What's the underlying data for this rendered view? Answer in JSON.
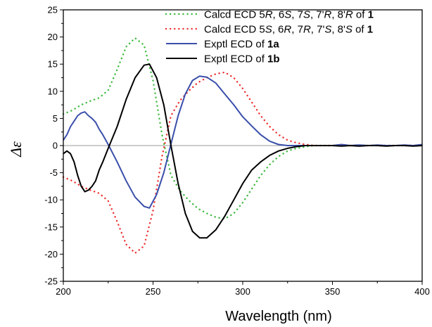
{
  "chart_data": {
    "type": "line",
    "xlabel": "Wavelength (nm)",
    "ylabel": "Δε",
    "xlim": [
      200,
      400
    ],
    "ylim": [
      -25,
      25
    ],
    "xticks": [
      200,
      250,
      300,
      350,
      400
    ],
    "yticks": [
      -25,
      -20,
      -15,
      -10,
      -5,
      0,
      5,
      10,
      15,
      20,
      25
    ],
    "legend_position": "top-right",
    "zero_line": true,
    "series": [
      {
        "name": "Calcd ECD 5R, 6S, 7S, 7'R, 8'R of 1",
        "legend_parts": [
          {
            "t": "Calcd ECD 5"
          },
          {
            "t": "R",
            "i": true
          },
          {
            "t": ", 6"
          },
          {
            "t": "S",
            "i": true
          },
          {
            "t": ", 7"
          },
          {
            "t": "S",
            "i": true
          },
          {
            "t": ", 7'"
          },
          {
            "t": "R",
            "i": true
          },
          {
            "t": ", 8'"
          },
          {
            "t": "R",
            "i": true
          },
          {
            "t": " of "
          },
          {
            "t": "1",
            "b": true
          }
        ],
        "color": "#3cb93c",
        "style": "dotted",
        "x": [
          200,
          205,
          210,
          215,
          220,
          225,
          230,
          235,
          240,
          245,
          250,
          255,
          260,
          265,
          270,
          275,
          280,
          285,
          290,
          295,
          300,
          305,
          310,
          315,
          320,
          325,
          330,
          335,
          340,
          345,
          350,
          360,
          370,
          380,
          390,
          400
        ],
        "y": [
          5.8,
          6.5,
          7.5,
          8.2,
          8.8,
          10.2,
          14,
          18.2,
          19.8,
          18.5,
          12,
          2,
          -5.5,
          -8.3,
          -10.1,
          -11.6,
          -12.5,
          -13.2,
          -13.5,
          -12.5,
          -10.5,
          -8,
          -5.5,
          -3.5,
          -2,
          -1,
          -0.5,
          -0.2,
          0,
          0,
          0,
          0,
          0,
          0,
          0,
          0
        ]
      },
      {
        "name": "Calcd ECD 5S, 6R, 7R, 7'S, 8'S of 1",
        "legend_parts": [
          {
            "t": "Calcd ECD 5"
          },
          {
            "t": "S",
            "i": true
          },
          {
            "t": ", 6"
          },
          {
            "t": "R",
            "i": true
          },
          {
            "t": ", 7"
          },
          {
            "t": "R",
            "i": true
          },
          {
            "t": ", 7'"
          },
          {
            "t": "S",
            "i": true
          },
          {
            "t": ", 8'"
          },
          {
            "t": "S",
            "i": true
          },
          {
            "t": " of "
          },
          {
            "t": "1",
            "b": true
          }
        ],
        "color": "#ee3030",
        "style": "dotted",
        "x": [
          200,
          205,
          210,
          215,
          220,
          225,
          230,
          235,
          240,
          245,
          250,
          255,
          260,
          265,
          270,
          275,
          280,
          285,
          290,
          295,
          300,
          305,
          310,
          315,
          320,
          325,
          330,
          335,
          340,
          345,
          350,
          360,
          370,
          380,
          390,
          400
        ],
        "y": [
          -5.8,
          -6.5,
          -7.5,
          -8.2,
          -8.8,
          -10.2,
          -14,
          -18.2,
          -19.8,
          -18.5,
          -12,
          -2,
          5.5,
          8.3,
          10.1,
          11.6,
          12.5,
          13.2,
          13.5,
          12.5,
          10.5,
          8,
          5.5,
          3.5,
          2,
          1,
          0.5,
          0.2,
          0,
          0,
          0,
          0,
          0,
          0,
          0,
          0
        ]
      },
      {
        "name": "Exptl ECD of 1a",
        "legend_parts": [
          {
            "t": "Exptl ECD of "
          },
          {
            "t": "1a",
            "b": true
          }
        ],
        "color": "#3a4faa",
        "style": "solid",
        "x": [
          200,
          202,
          204,
          206,
          208,
          210,
          212,
          214,
          216,
          218,
          220,
          222,
          225,
          230,
          235,
          240,
          245,
          248,
          252,
          256,
          260,
          264,
          268,
          272,
          276,
          280,
          285,
          290,
          295,
          300,
          305,
          310,
          315,
          320,
          325,
          330,
          335,
          340,
          345,
          350,
          355,
          360,
          365,
          370,
          375,
          380,
          385,
          390,
          395,
          400
        ],
        "y": [
          1,
          2,
          3.5,
          4.5,
          5.5,
          6,
          6.2,
          5.5,
          5,
          4.3,
          3,
          2,
          0.2,
          -3,
          -6.5,
          -9.5,
          -11.2,
          -11.5,
          -9,
          -5,
          0.3,
          5.5,
          9.5,
          12,
          12.8,
          12.6,
          11.5,
          9.5,
          7.5,
          5.3,
          3.6,
          2,
          0.8,
          0.2,
          0,
          0,
          0,
          0,
          0,
          0,
          0.2,
          0,
          0.1,
          0,
          0.1,
          0,
          0,
          0.1,
          0,
          0.2
        ]
      },
      {
        "name": "Exptl ECD of 1b",
        "legend_parts": [
          {
            "t": "Exptl ECD of "
          },
          {
            "t": "1b",
            "b": true
          }
        ],
        "color": "#000000",
        "style": "solid",
        "x": [
          200,
          202,
          204,
          206,
          208,
          210,
          212,
          214,
          216,
          218,
          220,
          222,
          225,
          230,
          235,
          240,
          245,
          248,
          252,
          256,
          260,
          264,
          268,
          272,
          276,
          280,
          285,
          290,
          295,
          300,
          305,
          310,
          315,
          320,
          325,
          330,
          335,
          340,
          345,
          350,
          355,
          360,
          365,
          370,
          375,
          380,
          385,
          390,
          395,
          400
        ],
        "y": [
          -1.5,
          -1,
          -1.5,
          -3,
          -5.5,
          -7.5,
          -8.5,
          -8.2,
          -7.5,
          -6.5,
          -4.5,
          -3,
          -0.5,
          3.5,
          8.5,
          12.5,
          14.8,
          15,
          12.5,
          7.5,
          0,
          -7,
          -12.5,
          -15.8,
          -17,
          -17,
          -15.5,
          -13,
          -10,
          -7,
          -4.5,
          -3,
          -1.8,
          -1,
          -0.5,
          -0.2,
          0,
          0,
          0,
          0,
          -0.1,
          0,
          -0.1,
          0,
          0,
          -0.1,
          0,
          0,
          -0.1,
          0
        ]
      }
    ]
  }
}
